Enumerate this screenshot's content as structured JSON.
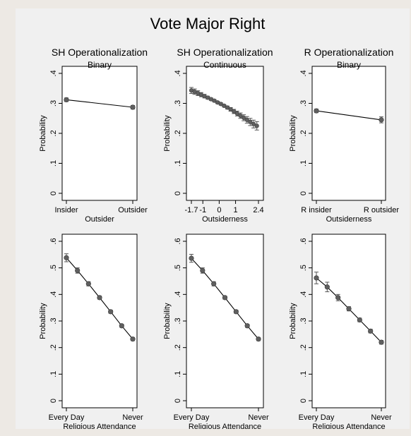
{
  "figure_title": "Vote Major Right",
  "colors": {
    "background": "#f0f0f0",
    "plot": "#ffffff",
    "marker": "#5f5f5f",
    "line": "#000000"
  },
  "chart_data": [
    {
      "type": "line",
      "title": "SH Operationalization",
      "subtitle": "Binary",
      "xlabel": "Outsider",
      "ylabel": "Probability",
      "ylim": [
        0,
        0.4
      ],
      "yticks": [
        0,
        0.1,
        0.2,
        0.3,
        0.4
      ],
      "ytick_labels": [
        "0",
        ".1",
        ".2",
        ".3",
        ".4"
      ],
      "xlim": [
        0,
        1
      ],
      "xticks": [
        0,
        1
      ],
      "xtick_labels": [
        "Insider",
        "Outsider"
      ],
      "x": [
        0,
        1
      ],
      "y": [
        0.312,
        0.287
      ],
      "ci": [
        [
          0.306,
          0.318
        ],
        [
          0.281,
          0.293
        ]
      ]
    },
    {
      "type": "line",
      "title": "SH Operationalization",
      "subtitle": "Continuous",
      "xlabel": "Outsiderness",
      "ylabel": "Probability",
      "ylim": [
        0,
        0.4
      ],
      "yticks": [
        0,
        0.1,
        0.2,
        0.3,
        0.4
      ],
      "ytick_labels": [
        "0",
        ".1",
        ".2",
        ".3",
        ".4"
      ],
      "xlim": [
        -1.7,
        2.4
      ],
      "xticks": [
        -1.7,
        -1,
        0,
        1,
        2.4
      ],
      "xtick_labels": [
        "-1.7",
        "-1",
        "0",
        "1",
        "2.4"
      ],
      "x": [
        -1.7,
        -1.5,
        -1.3,
        -1.1,
        -0.9,
        -0.7,
        -0.5,
        -0.3,
        -0.1,
        0.1,
        0.3,
        0.5,
        0.7,
        0.9,
        1.1,
        1.3,
        1.5,
        1.7,
        1.9,
        2.1,
        2.3
      ],
      "y": [
        0.343,
        0.339,
        0.334,
        0.329,
        0.324,
        0.319,
        0.314,
        0.309,
        0.303,
        0.298,
        0.292,
        0.286,
        0.28,
        0.273,
        0.266,
        0.259,
        0.252,
        0.245,
        0.238,
        0.231,
        0.225
      ],
      "ci": [
        [
          0.333,
          0.353
        ],
        [
          0.33,
          0.348
        ],
        [
          0.326,
          0.342
        ],
        [
          0.322,
          0.336
        ],
        [
          0.318,
          0.33
        ],
        [
          0.314,
          0.324
        ],
        [
          0.31,
          0.318
        ],
        [
          0.305,
          0.313
        ],
        [
          0.299,
          0.307
        ],
        [
          0.294,
          0.302
        ],
        [
          0.288,
          0.296
        ],
        [
          0.281,
          0.291
        ],
        [
          0.274,
          0.286
        ],
        [
          0.266,
          0.28
        ],
        [
          0.258,
          0.274
        ],
        [
          0.25,
          0.268
        ],
        [
          0.242,
          0.262
        ],
        [
          0.234,
          0.256
        ],
        [
          0.226,
          0.25
        ],
        [
          0.218,
          0.244
        ],
        [
          0.211,
          0.239
        ]
      ]
    },
    {
      "type": "line",
      "title": "R Operationalization",
      "subtitle": "Binary",
      "xlabel": "Outsiderness",
      "ylabel": "Probability",
      "ylim": [
        0,
        0.4
      ],
      "yticks": [
        0,
        0.1,
        0.2,
        0.3,
        0.4
      ],
      "ytick_labels": [
        "0",
        ".1",
        ".2",
        ".3",
        ".4"
      ],
      "xlim": [
        0,
        1
      ],
      "xticks": [
        0,
        1
      ],
      "xtick_labels": [
        "R insider",
        "R outsider"
      ],
      "x": [
        0,
        1
      ],
      "y": [
        0.275,
        0.245
      ],
      "ci": [
        [
          0.269,
          0.281
        ],
        [
          0.235,
          0.255
        ]
      ]
    },
    {
      "type": "line",
      "title": "",
      "subtitle": "",
      "xlabel": "Religious Attendance",
      "ylabel": "Probability",
      "ylim": [
        0,
        0.6
      ],
      "yticks": [
        0,
        0.1,
        0.2,
        0.3,
        0.4,
        0.5,
        0.6
      ],
      "ytick_labels": [
        "0",
        ".1",
        ".2",
        ".3",
        ".4",
        ".5",
        ".6"
      ],
      "xlim": [
        1,
        7
      ],
      "xticks": [
        1,
        7
      ],
      "xtick_labels": [
        "Every Day",
        "Never"
      ],
      "x": [
        1,
        2,
        3,
        4,
        5,
        6,
        7
      ],
      "y": [
        0.538,
        0.49,
        0.44,
        0.388,
        0.335,
        0.282,
        0.232
      ],
      "ci": [
        [
          0.523,
          0.553
        ],
        [
          0.48,
          0.5
        ],
        [
          0.432,
          0.448
        ],
        [
          0.382,
          0.394
        ],
        [
          0.329,
          0.341
        ],
        [
          0.276,
          0.288
        ],
        [
          0.226,
          0.238
        ]
      ]
    },
    {
      "type": "line",
      "title": "",
      "subtitle": "",
      "xlabel": "Religious Attendance",
      "ylabel": "Probability",
      "ylim": [
        0,
        0.6
      ],
      "yticks": [
        0,
        0.1,
        0.2,
        0.3,
        0.4,
        0.5,
        0.6
      ],
      "ytick_labels": [
        "0",
        ".1",
        ".2",
        ".3",
        ".4",
        ".5",
        ".6"
      ],
      "xlim": [
        1,
        7
      ],
      "xticks": [
        1,
        7
      ],
      "xtick_labels": [
        "Every Day",
        "Never"
      ],
      "x": [
        1,
        2,
        3,
        4,
        5,
        6,
        7
      ],
      "y": [
        0.536,
        0.49,
        0.44,
        0.388,
        0.335,
        0.282,
        0.232
      ],
      "ci": [
        [
          0.521,
          0.551
        ],
        [
          0.48,
          0.5
        ],
        [
          0.432,
          0.448
        ],
        [
          0.382,
          0.394
        ],
        [
          0.329,
          0.341
        ],
        [
          0.276,
          0.288
        ],
        [
          0.226,
          0.238
        ]
      ]
    },
    {
      "type": "line",
      "title": "",
      "subtitle": "",
      "xlabel": "Religious Attendance",
      "ylabel": "Probability",
      "ylim": [
        0,
        0.6
      ],
      "yticks": [
        0,
        0.1,
        0.2,
        0.3,
        0.4,
        0.5,
        0.6
      ],
      "ytick_labels": [
        "0",
        ".1",
        ".2",
        ".3",
        ".4",
        ".5",
        ".6"
      ],
      "xlim": [
        1,
        7
      ],
      "xticks": [
        1,
        7
      ],
      "xtick_labels": [
        "Every Day",
        "Never"
      ],
      "x": [
        1,
        2,
        3,
        4,
        5,
        6,
        7
      ],
      "y": [
        0.462,
        0.428,
        0.388,
        0.346,
        0.304,
        0.262,
        0.22
      ],
      "ci": [
        [
          0.44,
          0.484
        ],
        [
          0.41,
          0.446
        ],
        [
          0.376,
          0.4
        ],
        [
          0.338,
          0.354
        ],
        [
          0.297,
          0.311
        ],
        [
          0.255,
          0.269
        ],
        [
          0.213,
          0.227
        ]
      ]
    }
  ]
}
